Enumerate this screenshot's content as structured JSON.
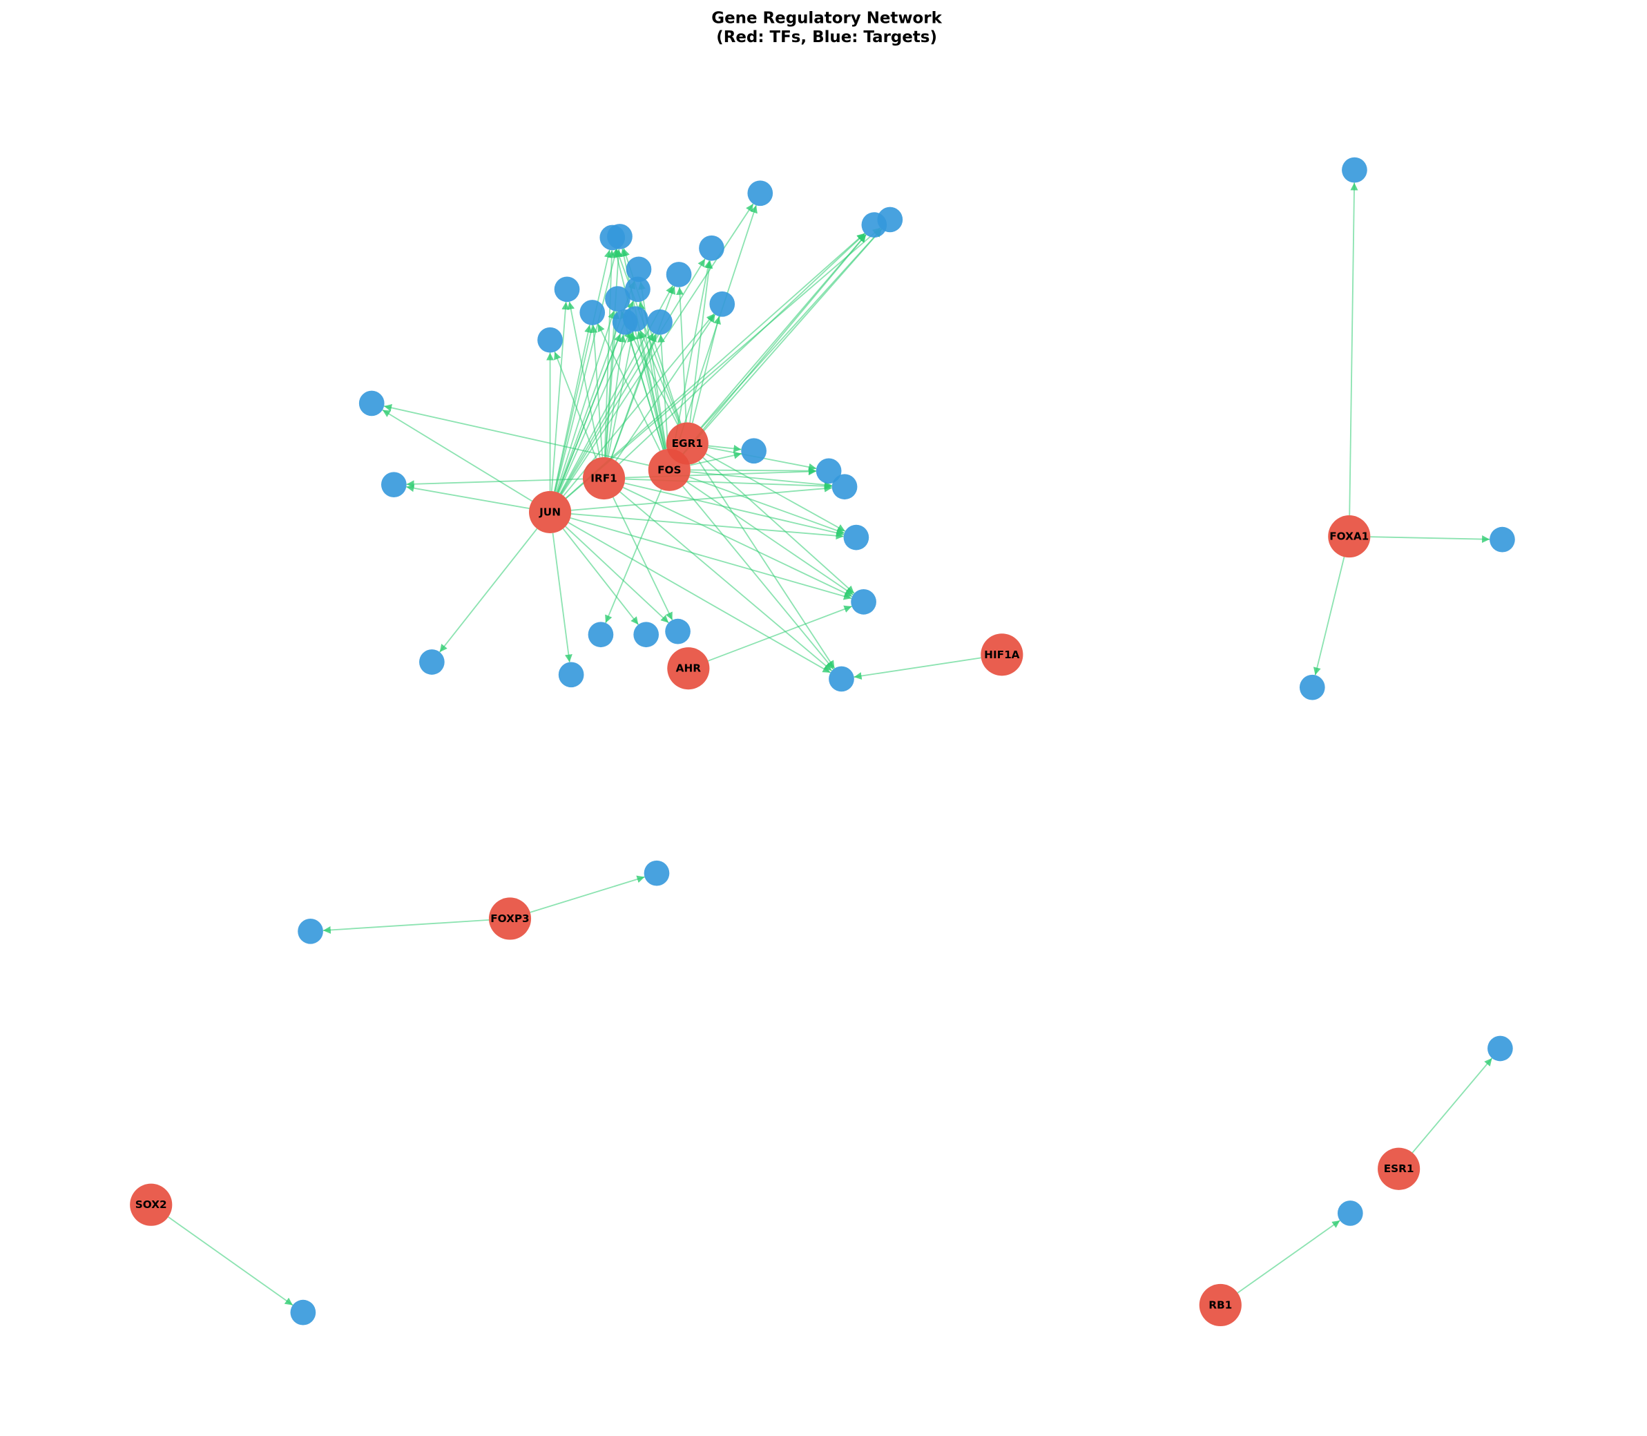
{
  "header": {
    "title": "Gene Regulatory Network",
    "subtitle": "(Red: TFs, Blue: Targets)"
  },
  "nodes": [
    {
      "label": "JUN"
    },
    {
      "label": "IRF1"
    },
    {
      "label": "FOS"
    },
    {
      "label": "EGR1"
    },
    {
      "label": "AHR"
    },
    {
      "label": "HIF1A"
    },
    {
      "label": "FOXA1"
    },
    {
      "label": "FOXP3"
    },
    {
      "label": "SOX2"
    },
    {
      "label": "ESR1"
    },
    {
      "label": "RB1"
    }
  ]
}
